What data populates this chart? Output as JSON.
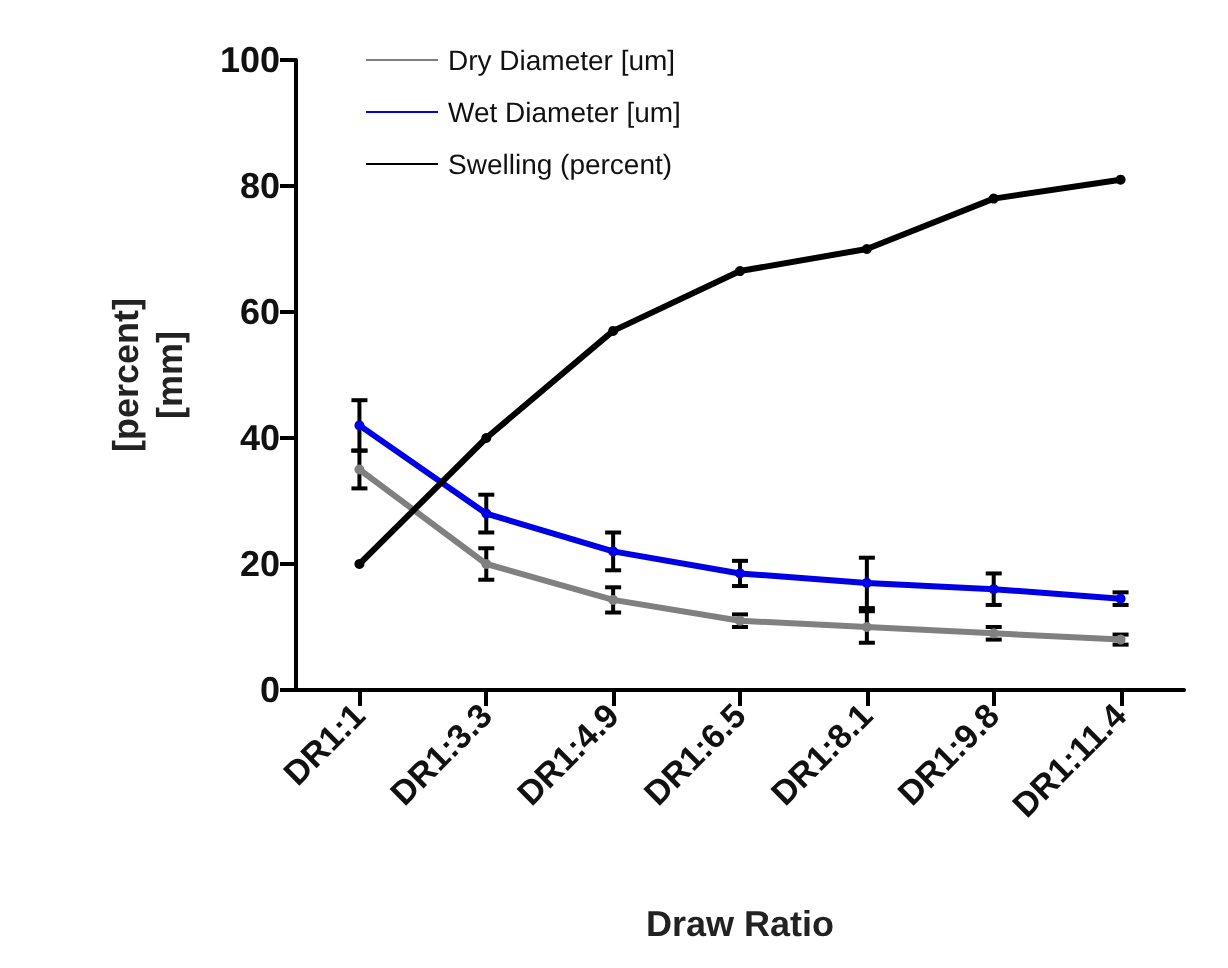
{
  "chart_data": {
    "type": "line",
    "xlabel": "Draw Ratio",
    "ylabel": "[percent]\n[mm]",
    "categories": [
      "DR1:1",
      "DR1:3.3",
      "DR1:4.9",
      "DR1:6.5",
      "DR1:8.1",
      "DR1:9.8",
      "DR1:11.4"
    ],
    "ylim": [
      0,
      100
    ],
    "yticks": [
      0,
      20,
      40,
      60,
      80,
      100
    ],
    "series": [
      {
        "name": "Dry Diameter [um]",
        "color": "#808080",
        "values": [
          35,
          20,
          14.3,
          11,
          10,
          9,
          8
        ],
        "errors": [
          3,
          2.5,
          2,
          1,
          2.5,
          1,
          0.8
        ]
      },
      {
        "name": "Wet Diameter [um]",
        "color": "#0000e6",
        "values": [
          42,
          28,
          22,
          18.5,
          17,
          16,
          14.5
        ],
        "errors": [
          4,
          3,
          3,
          2,
          4,
          2.5,
          1
        ]
      },
      {
        "name": "Swelling (percent)",
        "color": "#000000",
        "values": [
          20,
          40,
          57,
          66.5,
          70,
          78,
          81
        ]
      }
    ],
    "legend": "top left",
    "grid": false,
    "marker": "circle",
    "line_style": "solid"
  }
}
